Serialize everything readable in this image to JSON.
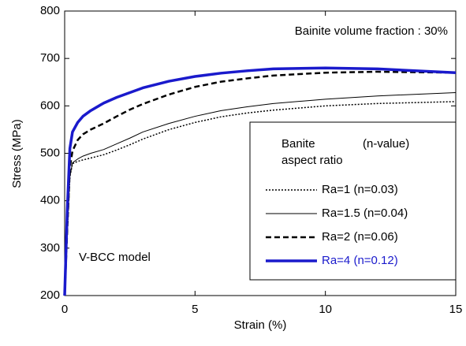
{
  "chart_data": {
    "type": "line",
    "xlabel": "Strain (%)",
    "ylabel": "Stress (MPa)",
    "annotations": [
      "Bainite volume fraction : 30%",
      "V-BCC model"
    ],
    "legend_title": [
      "Banite",
      "(n-value)",
      "aspect ratio"
    ],
    "x": [
      0,
      0.1,
      0.2,
      0.3,
      0.5,
      0.7,
      1,
      1.5,
      2,
      2.5,
      3,
      4,
      5,
      6,
      7,
      8,
      10,
      12,
      15
    ],
    "series": [
      {
        "name": "Ra=1 (n=0.03)",
        "color": "#000000",
        "style": "dotted",
        "values": [
          200,
          330,
          450,
          478,
          483,
          486,
          490,
          497,
          507,
          518,
          530,
          550,
          565,
          577,
          585,
          591,
          600,
          605,
          609
        ]
      },
      {
        "name": "Ra=1.5 (n=0.04)",
        "color": "#000000",
        "style": "solid",
        "values": [
          200,
          330,
          450,
          480,
          488,
          494,
          500,
          508,
          520,
          532,
          545,
          563,
          578,
          590,
          598,
          605,
          614,
          621,
          628
        ]
      },
      {
        "name": "Ra=2 (n=0.06)",
        "color": "#000000",
        "style": "dashed",
        "values": [
          200,
          340,
          470,
          505,
          528,
          540,
          550,
          563,
          578,
          592,
          604,
          624,
          640,
          651,
          658,
          664,
          670,
          672,
          670
        ]
      },
      {
        "name": "Ra=4 (n=0.12)",
        "color": "#1a1acc",
        "style": "thick",
        "values": [
          200,
          380,
          510,
          545,
          565,
          578,
          590,
          606,
          618,
          628,
          638,
          652,
          662,
          669,
          674,
          678,
          680,
          678,
          670
        ]
      }
    ],
    "xlim": [
      0,
      15
    ],
    "xticks": [
      0,
      5,
      10,
      15
    ],
    "ylim": [
      200,
      800
    ],
    "yticks": [
      200,
      300,
      400,
      500,
      600,
      700,
      800
    ]
  }
}
